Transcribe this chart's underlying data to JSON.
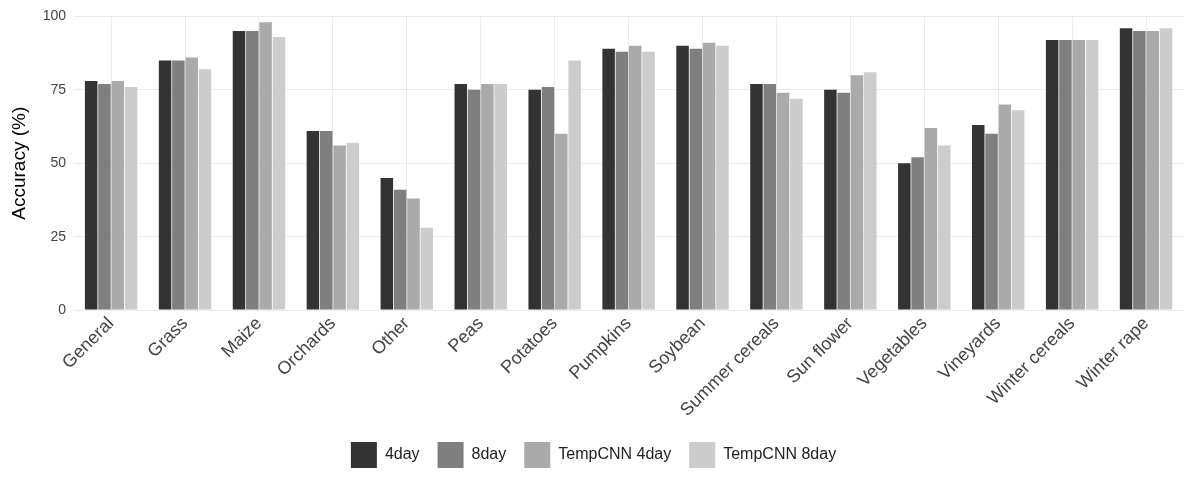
{
  "chart_data": {
    "type": "bar",
    "ylabel": "Accuracy (%)",
    "categories": [
      "General",
      "Grass",
      "Maize",
      "Orchards",
      "Other",
      "Peas",
      "Potatoes",
      "Pumpkins",
      "Soybean",
      "Summer cereals",
      "Sun flower",
      "Vegetables",
      "Vineyards",
      "Winter cereals",
      "Winter rape"
    ],
    "series": [
      {
        "name": "4day",
        "color": "#333333",
        "values": [
          78,
          85,
          95,
          61,
          45,
          77,
          75,
          89,
          90,
          77,
          75,
          50,
          63,
          92,
          96
        ]
      },
      {
        "name": "8day",
        "color": "#7f7f7f",
        "values": [
          77,
          85,
          95,
          61,
          41,
          75,
          76,
          88,
          89,
          77,
          74,
          52,
          60,
          92,
          95
        ]
      },
      {
        "name": "TempCNN 4day",
        "color": "#aaaaaa",
        "values": [
          78,
          86,
          98,
          56,
          38,
          77,
          60,
          90,
          91,
          74,
          80,
          62,
          70,
          92,
          95
        ]
      },
      {
        "name": "TempCNN 8day",
        "color": "#cccccc",
        "values": [
          76,
          82,
          93,
          57,
          28,
          77,
          85,
          88,
          90,
          72,
          81,
          56,
          68,
          92,
          96
        ]
      }
    ],
    "ylim": [
      0,
      100
    ],
    "yticks": [
      0,
      25,
      50,
      75,
      100
    ],
    "grid": true,
    "legend": "bottom"
  }
}
